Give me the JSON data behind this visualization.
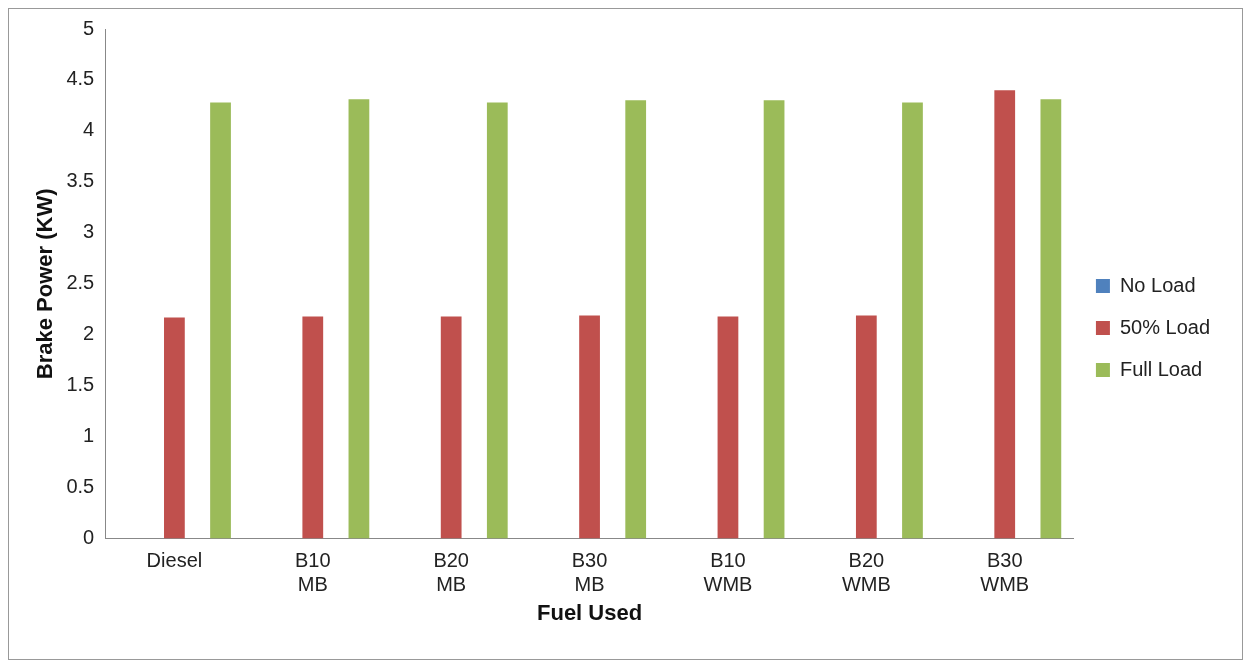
{
  "chart_data": {
    "type": "bar",
    "xlabel": "Fuel Used",
    "ylabel": "Brake Power (KW)",
    "categories": [
      "Diesel",
      "B10 MB",
      "B20 MB",
      "B30 MB",
      "B10 WMB",
      "B20 WMB",
      "B30 WMB"
    ],
    "series": [
      {
        "name": "No Load",
        "color": "#4f81bd",
        "values": [
          0,
          0,
          0,
          0,
          0,
          0,
          0
        ]
      },
      {
        "name": "50% Load",
        "color": "#c0504d",
        "values": [
          2.17,
          2.18,
          2.18,
          2.19,
          2.18,
          2.19,
          4.4
        ]
      },
      {
        "name": "Full Load",
        "color": "#9bbb59",
        "values": [
          4.28,
          4.31,
          4.28,
          4.3,
          4.3,
          4.28,
          4.31
        ]
      }
    ],
    "ylim": [
      0,
      5
    ],
    "yticks": [
      0,
      0.5,
      1,
      1.5,
      2,
      2.5,
      3,
      3.5,
      4,
      4.5,
      5
    ],
    "grid": false,
    "legend": "right"
  }
}
